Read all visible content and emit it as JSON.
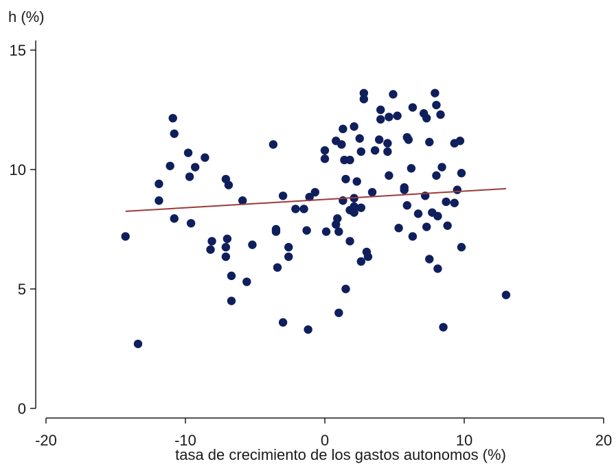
{
  "chart_data": {
    "type": "scatter",
    "title": "",
    "xlabel": "tasa de crecimiento de los gastos autonomos (%)",
    "ylabel": "h (%)",
    "xlim": [
      -20,
      20
    ],
    "ylim": [
      0,
      15
    ],
    "xticks": [
      -20,
      -10,
      0,
      10,
      20
    ],
    "yticks": [
      0,
      5,
      10,
      15
    ],
    "grid": false,
    "legend": "none",
    "colors": {
      "points": "#0f1f5c",
      "fit_line": "#9b3a3a",
      "axis": "#1a1a1a"
    },
    "fit_line": {
      "x": [
        -14.3,
        13.0
      ],
      "y": [
        8.25,
        9.2
      ]
    },
    "points": [
      {
        "x": -14.3,
        "y": 7.2
      },
      {
        "x": -13.4,
        "y": 2.7
      },
      {
        "x": -11.9,
        "y": 9.4
      },
      {
        "x": -11.9,
        "y": 8.7
      },
      {
        "x": -10.9,
        "y": 12.15
      },
      {
        "x": -10.8,
        "y": 11.5
      },
      {
        "x": -11.1,
        "y": 10.15
      },
      {
        "x": -10.8,
        "y": 7.95
      },
      {
        "x": -9.8,
        "y": 10.7
      },
      {
        "x": -9.7,
        "y": 9.7
      },
      {
        "x": -9.3,
        "y": 10.1
      },
      {
        "x": -9.6,
        "y": 7.75
      },
      {
        "x": -8.6,
        "y": 10.5
      },
      {
        "x": -8.1,
        "y": 7.0
      },
      {
        "x": -8.2,
        "y": 6.65
      },
      {
        "x": -7.1,
        "y": 9.6
      },
      {
        "x": -6.9,
        "y": 9.35
      },
      {
        "x": -7.0,
        "y": 7.1
      },
      {
        "x": -7.1,
        "y": 6.75
      },
      {
        "x": -7.1,
        "y": 6.35
      },
      {
        "x": -6.7,
        "y": 5.55
      },
      {
        "x": -6.7,
        "y": 4.5
      },
      {
        "x": -5.9,
        "y": 8.7
      },
      {
        "x": -5.6,
        "y": 5.3
      },
      {
        "x": -5.2,
        "y": 6.85
      },
      {
        "x": -3.7,
        "y": 11.05
      },
      {
        "x": -3.5,
        "y": 7.5
      },
      {
        "x": -3.5,
        "y": 7.4
      },
      {
        "x": -3.4,
        "y": 5.9
      },
      {
        "x": -3.0,
        "y": 8.9
      },
      {
        "x": -3.0,
        "y": 3.6
      },
      {
        "x": -2.6,
        "y": 6.75
      },
      {
        "x": -2.6,
        "y": 6.35
      },
      {
        "x": -2.1,
        "y": 8.35
      },
      {
        "x": -1.5,
        "y": 8.35
      },
      {
        "x": -1.3,
        "y": 7.45
      },
      {
        "x": -1.1,
        "y": 8.85
      },
      {
        "x": -1.2,
        "y": 3.3
      },
      {
        "x": -0.7,
        "y": 9.05
      },
      {
        "x": 0.0,
        "y": 10.8
      },
      {
        "x": 0.0,
        "y": 10.45
      },
      {
        "x": 0.1,
        "y": 7.4
      },
      {
        "x": 0.8,
        "y": 11.2
      },
      {
        "x": 0.8,
        "y": 7.7
      },
      {
        "x": 0.9,
        "y": 7.95
      },
      {
        "x": 1.0,
        "y": 7.4
      },
      {
        "x": 1.0,
        "y": 4.0
      },
      {
        "x": 1.3,
        "y": 11.7
      },
      {
        "x": 1.2,
        "y": 11.05
      },
      {
        "x": 1.4,
        "y": 10.4
      },
      {
        "x": 1.3,
        "y": 8.7
      },
      {
        "x": 1.5,
        "y": 9.6
      },
      {
        "x": 1.5,
        "y": 5.0
      },
      {
        "x": 1.8,
        "y": 10.4
      },
      {
        "x": 1.8,
        "y": 8.3
      },
      {
        "x": 1.8,
        "y": 7.0
      },
      {
        "x": 2.1,
        "y": 11.8
      },
      {
        "x": 2.1,
        "y": 8.8
      },
      {
        "x": 2.1,
        "y": 8.45
      },
      {
        "x": 2.1,
        "y": 8.2
      },
      {
        "x": 2.3,
        "y": 9.5
      },
      {
        "x": 2.5,
        "y": 11.3
      },
      {
        "x": 2.6,
        "y": 10.75
      },
      {
        "x": 2.6,
        "y": 8.4
      },
      {
        "x": 2.6,
        "y": 6.15
      },
      {
        "x": 2.8,
        "y": 13.2
      },
      {
        "x": 2.8,
        "y": 12.95
      },
      {
        "x": 3.0,
        "y": 6.55
      },
      {
        "x": 3.1,
        "y": 6.35
      },
      {
        "x": 3.4,
        "y": 9.05
      },
      {
        "x": 3.6,
        "y": 10.8
      },
      {
        "x": 3.9,
        "y": 11.25
      },
      {
        "x": 4.0,
        "y": 12.5
      },
      {
        "x": 4.0,
        "y": 12.1
      },
      {
        "x": 4.5,
        "y": 11.1
      },
      {
        "x": 4.5,
        "y": 10.75
      },
      {
        "x": 4.6,
        "y": 12.2
      },
      {
        "x": 4.6,
        "y": 9.75
      },
      {
        "x": 4.9,
        "y": 13.15
      },
      {
        "x": 5.2,
        "y": 12.25
      },
      {
        "x": 5.3,
        "y": 7.55
      },
      {
        "x": 5.7,
        "y": 9.25
      },
      {
        "x": 5.7,
        "y": 9.15
      },
      {
        "x": 5.9,
        "y": 11.35
      },
      {
        "x": 6.0,
        "y": 11.25
      },
      {
        "x": 5.9,
        "y": 8.5
      },
      {
        "x": 6.2,
        "y": 10.05
      },
      {
        "x": 6.3,
        "y": 12.6
      },
      {
        "x": 6.3,
        "y": 7.2
      },
      {
        "x": 6.7,
        "y": 8.15
      },
      {
        "x": 7.1,
        "y": 12.35
      },
      {
        "x": 7.2,
        "y": 8.9
      },
      {
        "x": 7.3,
        "y": 12.15
      },
      {
        "x": 7.3,
        "y": 7.6
      },
      {
        "x": 7.5,
        "y": 11.15
      },
      {
        "x": 7.5,
        "y": 6.25
      },
      {
        "x": 7.7,
        "y": 8.2
      },
      {
        "x": 7.9,
        "y": 13.2
      },
      {
        "x": 8.0,
        "y": 12.7
      },
      {
        "x": 8.0,
        "y": 9.75
      },
      {
        "x": 8.1,
        "y": 8.05
      },
      {
        "x": 8.1,
        "y": 5.85
      },
      {
        "x": 8.3,
        "y": 12.3
      },
      {
        "x": 8.4,
        "y": 10.1
      },
      {
        "x": 8.5,
        "y": 3.4
      },
      {
        "x": 8.7,
        "y": 8.65
      },
      {
        "x": 8.8,
        "y": 7.65
      },
      {
        "x": 9.3,
        "y": 11.1
      },
      {
        "x": 9.3,
        "y": 8.6
      },
      {
        "x": 9.5,
        "y": 9.15
      },
      {
        "x": 9.7,
        "y": 11.2
      },
      {
        "x": 9.8,
        "y": 9.85
      },
      {
        "x": 9.8,
        "y": 6.75
      },
      {
        "x": 13.0,
        "y": 4.75
      }
    ]
  }
}
